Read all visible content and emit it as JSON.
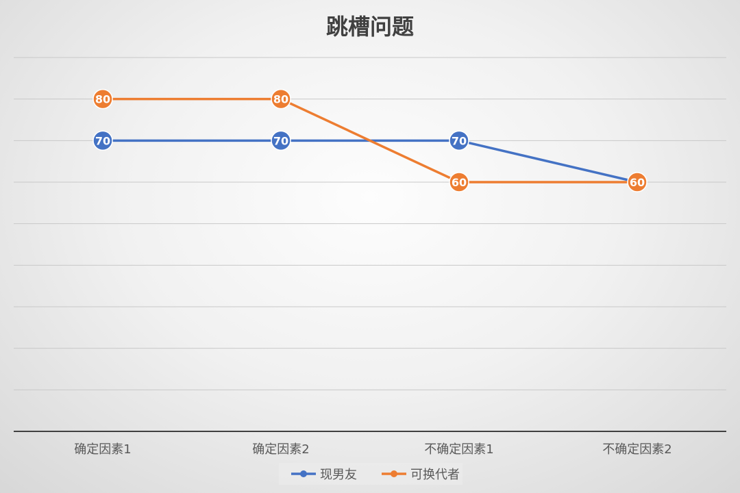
{
  "chart_data": {
    "type": "line",
    "title": "跳槽问题",
    "categories": [
      "确定因素1",
      "确定因素2",
      "不确定因素1",
      "不确定因素2"
    ],
    "series": [
      {
        "name": "现男友",
        "values": [
          70,
          70,
          70,
          60
        ],
        "color": "#4472c4"
      },
      {
        "name": "可换代者",
        "values": [
          80,
          80,
          60,
          60
        ],
        "color": "#ed7d31"
      }
    ],
    "ylim": [
      0,
      90
    ],
    "ytick_step": 10,
    "y_tick_labels_visible": false,
    "data_labels": true,
    "grid": true,
    "legend_position": "bottom"
  }
}
